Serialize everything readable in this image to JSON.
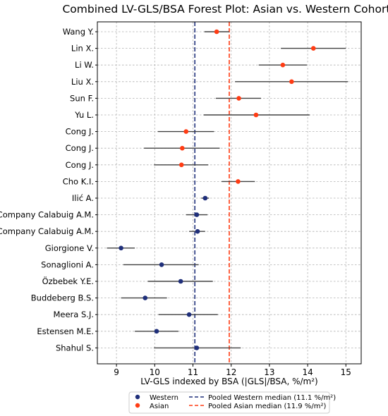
{
  "chart_data": {
    "type": "scatter",
    "subtype": "forest-plot",
    "title": "Combined LV-GLS/BSA Forest Plot: Asian vs. Western Cohorts",
    "xlabel": "LV-GLS indexed by BSA (|GLS|/BSA, %/m²)",
    "ylabel": "",
    "xlim": [
      8.5,
      15.4
    ],
    "xticks": [
      9,
      10,
      11,
      12,
      13,
      14,
      15
    ],
    "grid": true,
    "legend_placement": "bottom-center",
    "colors": {
      "Western": "#1f2f7a",
      "Asian": "#ff3c14",
      "ci_line": "#404040",
      "grid": "#b0b0b0"
    },
    "studies": [
      {
        "label": "Wang Y.",
        "cohort": "Asian",
        "estimate": 11.62,
        "ci": [
          11.3,
          11.95
        ]
      },
      {
        "label": "Lin X.",
        "cohort": "Asian",
        "estimate": 14.15,
        "ci": [
          13.3,
          15.0
        ]
      },
      {
        "label": "Li W.",
        "cohort": "Asian",
        "estimate": 13.35,
        "ci": [
          12.72,
          13.98
        ]
      },
      {
        "label": "Liu X.",
        "cohort": "Asian",
        "estimate": 13.58,
        "ci": [
          12.1,
          15.05
        ]
      },
      {
        "label": "Sun F.",
        "cohort": "Asian",
        "estimate": 12.2,
        "ci": [
          11.6,
          12.78
        ]
      },
      {
        "label": "Yu L.",
        "cohort": "Asian",
        "estimate": 12.65,
        "ci": [
          11.28,
          14.05
        ]
      },
      {
        "label": "Cong J.",
        "cohort": "Asian",
        "estimate": 10.82,
        "ci": [
          10.08,
          11.55
        ]
      },
      {
        "label": "Cong J.",
        "cohort": "Asian",
        "estimate": 10.72,
        "ci": [
          9.72,
          11.7
        ]
      },
      {
        "label": "Cong J.",
        "cohort": "Asian",
        "estimate": 10.7,
        "ci": [
          9.98,
          11.4
        ]
      },
      {
        "label": "Cho K.I.",
        "cohort": "Asian",
        "estimate": 12.18,
        "ci": [
          11.75,
          12.62
        ]
      },
      {
        "label": "Ilić A.",
        "cohort": "Western",
        "estimate": 11.32,
        "ci": [
          11.22,
          11.42
        ]
      },
      {
        "label": "Company Calabuig A.M.",
        "cohort": "Western",
        "estimate": 11.1,
        "ci": [
          10.82,
          11.38
        ]
      },
      {
        "label": "Company Calabuig A.M.",
        "cohort": "Western",
        "estimate": 11.12,
        "ci": [
          10.9,
          11.32
        ]
      },
      {
        "label": "Giorgione V.",
        "cohort": "Western",
        "estimate": 9.12,
        "ci": [
          8.75,
          9.48
        ]
      },
      {
        "label": "Sonaglioni A.",
        "cohort": "Western",
        "estimate": 10.18,
        "ci": [
          9.18,
          11.15
        ]
      },
      {
        "label": "Özbebek Y.E.",
        "cohort": "Western",
        "estimate": 10.68,
        "ci": [
          9.82,
          11.52
        ]
      },
      {
        "label": "Buddeberg B.S.",
        "cohort": "Western",
        "estimate": 9.75,
        "ci": [
          9.12,
          10.32
        ]
      },
      {
        "label": "Meera S.J.",
        "cohort": "Western",
        "estimate": 10.9,
        "ci": [
          10.1,
          11.65
        ]
      },
      {
        "label": "Estensen M.E.",
        "cohort": "Western",
        "estimate": 10.05,
        "ci": [
          9.48,
          10.62
        ]
      },
      {
        "label": "Shahul S.",
        "cohort": "Western",
        "estimate": 11.1,
        "ci": [
          9.98,
          12.25
        ]
      }
    ],
    "reference_lines": [
      {
        "name": "Pooled Western median (11.1 %/m²)",
        "x": 11.05,
        "color": "#1f2f7a",
        "style": "dashed"
      },
      {
        "name": "Pooled Asian median (11.9 %/m²)",
        "x": 11.95,
        "color": "#ff3c14",
        "style": "dashed"
      }
    ],
    "legend": [
      {
        "label": "Western",
        "kind": "marker",
        "color": "#1f2f7a"
      },
      {
        "label": "Asian",
        "kind": "marker",
        "color": "#ff3c14"
      },
      {
        "label": "Pooled Western median (11.1 %/m²)",
        "kind": "dashed",
        "color": "#1f2f7a"
      },
      {
        "label": "Pooled Asian median (11.9 %/m²)",
        "kind": "dashed",
        "color": "#ff3c14"
      }
    ]
  }
}
